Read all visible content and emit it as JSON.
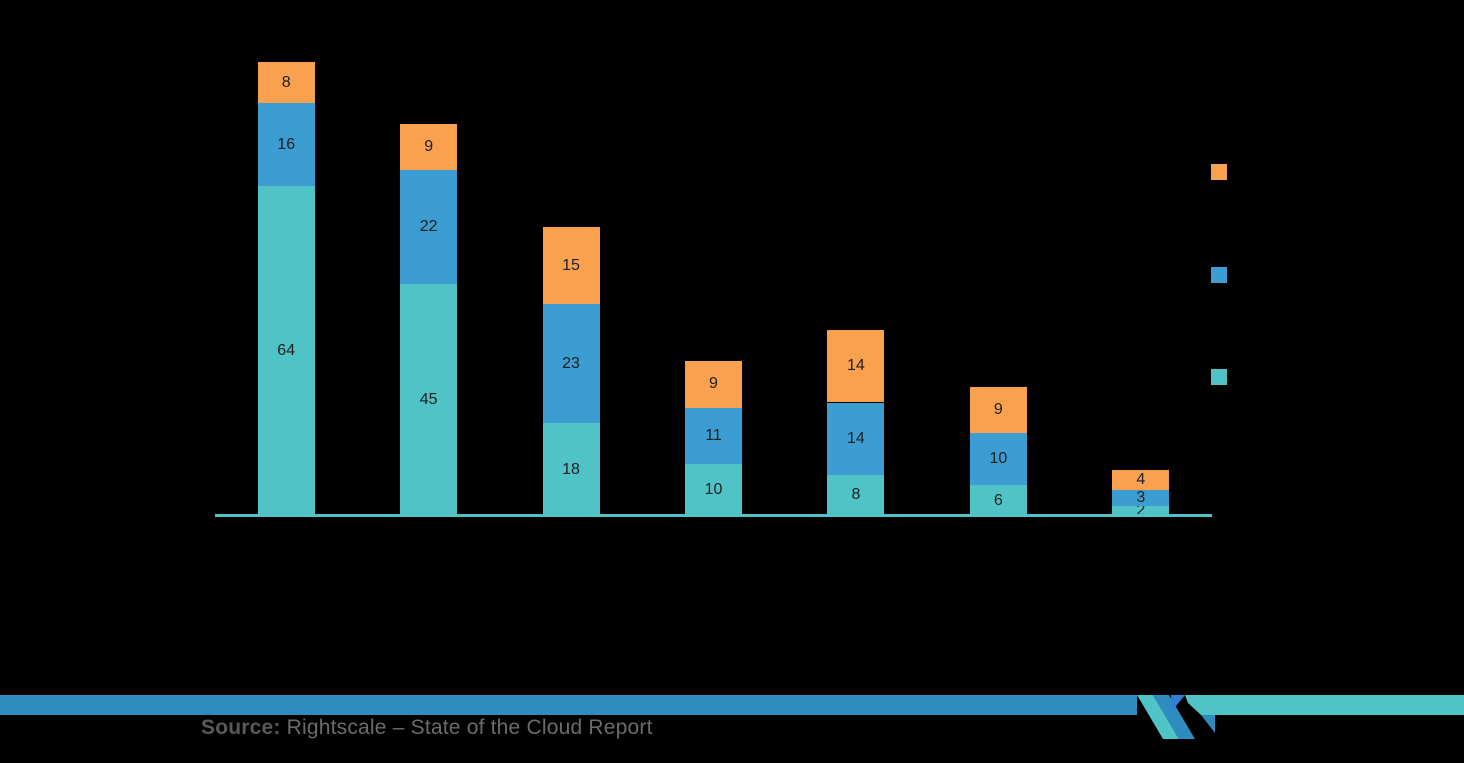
{
  "chart_data": {
    "type": "bar",
    "stacked": true,
    "orientation": "vertical",
    "title": "",
    "xlabel": "",
    "ylabel": "",
    "categories": [
      "",
      "",
      "",
      "",
      "",
      "",
      ""
    ],
    "series": [
      {
        "name": "",
        "color": "#4FC3C6",
        "values": [
          64,
          45,
          18,
          10,
          8,
          6,
          2
        ]
      },
      {
        "name": "",
        "color": "#3C9DD3",
        "values": [
          16,
          22,
          23,
          11,
          14,
          10,
          3
        ]
      },
      {
        "name": "",
        "color": "#F9A14E",
        "values": [
          8,
          9,
          15,
          9,
          14,
          9,
          4
        ]
      }
    ],
    "stack_totals": [
      88,
      76,
      56,
      30,
      36,
      25,
      9
    ],
    "value_labels_visible": true,
    "axis_line_color": "#4FC3C6",
    "grid": false,
    "legend": {
      "position": "right",
      "labels_visible": false,
      "order_top_to_bottom": [
        "#F9A14E",
        "#3C9DD3",
        "#4FC3C6"
      ]
    }
  },
  "footer": {
    "source_label": "Source:",
    "source_text": " Rightscale – State of the Cloud Report",
    "band_blue": "#2E8CBF",
    "band_teal": "#4FC3C6",
    "logo_name": "mordor-intelligence-logo",
    "logo_colors": {
      "blue": "#2E8CBF",
      "teal": "#4FC3C6",
      "royal": "#2F80D4"
    }
  },
  "colors": {
    "background": "#000000",
    "value_label": "#1F1F1F",
    "source_label": "#595959",
    "source_text": "#6B6B6B"
  }
}
